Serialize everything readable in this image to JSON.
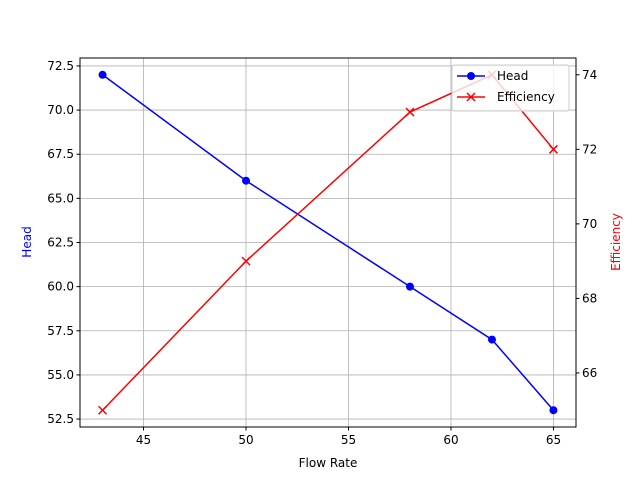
{
  "chart_data": {
    "type": "line",
    "title": "",
    "xlabel": "Flow Rate",
    "ylabel": "Head",
    "y2label": "Efficiency",
    "x": [
      43,
      50,
      58,
      62,
      65
    ],
    "xlim": [
      41.9,
      66.1
    ],
    "ylim": [
      52.05,
      72.95
    ],
    "y2lim": [
      64.55,
      74.45
    ],
    "xticks": [
      45,
      50,
      55,
      60,
      65
    ],
    "yticks": [
      "52.5",
      "55.0",
      "57.5",
      "60.0",
      "62.5",
      "65.0",
      "67.5",
      "70.0",
      "72.5"
    ],
    "y2ticks": [
      66,
      68,
      70,
      72,
      74
    ],
    "grid": true,
    "legend_position": "top-right",
    "series": [
      {
        "name": "Head",
        "axis": "left",
        "values": [
          72,
          66,
          60,
          57,
          53
        ],
        "color": "#0000ff",
        "marker": "circle"
      },
      {
        "name": "Efficiency",
        "axis": "right",
        "values": [
          65,
          69,
          73,
          74,
          72
        ],
        "color": "#ff0000",
        "marker": "x"
      }
    ]
  }
}
